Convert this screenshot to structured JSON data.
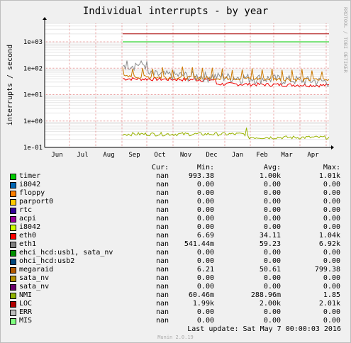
{
  "title": "Individual interrupts - by year",
  "side_label": "RRDTOOL / TOBI OETIKER",
  "chart_data": {
    "type": "line",
    "title": "Individual interrupts - by year",
    "ylabel": "interrupts / second",
    "yscale": "log",
    "ylim": [
      0.1,
      5000
    ],
    "yticks": [
      "1e-01",
      "1e+00",
      "1e+01",
      "1e+02",
      "1e+03"
    ],
    "x_months": [
      "Jun",
      "Jul",
      "Aug",
      "Sep",
      "Oct",
      "Nov",
      "Dec",
      "Jan",
      "Feb",
      "Mar",
      "Apr"
    ],
    "series": [
      {
        "name": "timer",
        "color": "#00cc00",
        "approx_level": 1000
      },
      {
        "name": "eth0",
        "color": "#ee0000",
        "approx_level": 34
      },
      {
        "name": "eth1",
        "color": "#8c8c8c",
        "approx_level": 59
      },
      {
        "name": "megaraid",
        "color": "#cc7a00",
        "approx_level": 50
      },
      {
        "name": "NMI",
        "color": "#99b300",
        "approx_level": 0.29
      },
      {
        "name": "LOC",
        "color": "#aa0000",
        "approx_level": 2000
      }
    ]
  },
  "legend": {
    "headers": {
      "cur": "Cur:",
      "min": "Min:",
      "avg": "Avg:",
      "max": "Max:"
    },
    "rows": [
      {
        "name": "timer",
        "color": "#00cc00",
        "cur": "nan",
        "min": "993.38",
        "avg": "1.00k",
        "max": "1.01k"
      },
      {
        "name": "i8042",
        "color": "#0066b3",
        "cur": "nan",
        "min": "0.00",
        "avg": "0.00",
        "max": "0.00"
      },
      {
        "name": "floppy",
        "color": "#ff8000",
        "cur": "nan",
        "min": "0.00",
        "avg": "0.00",
        "max": "0.00"
      },
      {
        "name": "parport0",
        "color": "#ffcc00",
        "cur": "nan",
        "min": "0.00",
        "avg": "0.00",
        "max": "0.00"
      },
      {
        "name": "rtc",
        "color": "#330099",
        "cur": "nan",
        "min": "0.00",
        "avg": "0.00",
        "max": "0.00"
      },
      {
        "name": "acpi",
        "color": "#990099",
        "cur": "nan",
        "min": "0.00",
        "avg": "0.00",
        "max": "0.00"
      },
      {
        "name": "i8042",
        "color": "#ccff00",
        "cur": "nan",
        "min": "0.00",
        "avg": "0.00",
        "max": "0.00"
      },
      {
        "name": "eth0",
        "color": "#ff0000",
        "cur": "nan",
        "min": "6.69",
        "avg": "34.11",
        "max": "1.04k"
      },
      {
        "name": "eth1",
        "color": "#808080",
        "cur": "nan",
        "min": "541.44m",
        "avg": "59.23",
        "max": "6.92k"
      },
      {
        "name": "ehci_hcd:usb1, sata_nv",
        "color": "#008f00",
        "cur": "nan",
        "min": "0.00",
        "avg": "0.00",
        "max": "0.00"
      },
      {
        "name": "ohci_hcd:usb2",
        "color": "#00487d",
        "cur": "nan",
        "min": "0.00",
        "avg": "0.00",
        "max": "0.00"
      },
      {
        "name": "megaraid",
        "color": "#b35a00",
        "cur": "nan",
        "min": "6.21",
        "avg": "50.61",
        "max": "799.38"
      },
      {
        "name": "sata_nv",
        "color": "#b38f00",
        "cur": "nan",
        "min": "0.00",
        "avg": "0.00",
        "max": "0.00"
      },
      {
        "name": "sata_nv",
        "color": "#6b006b",
        "cur": "nan",
        "min": "0.00",
        "avg": "0.00",
        "max": "0.00"
      },
      {
        "name": "NMI",
        "color": "#8fb300",
        "cur": "nan",
        "min": "60.46m",
        "avg": "288.96m",
        "max": "1.85"
      },
      {
        "name": "LOC",
        "color": "#b30000",
        "cur": "nan",
        "min": "1.99k",
        "avg": "2.00k",
        "max": "2.01k"
      },
      {
        "name": "ERR",
        "color": "#bebebe",
        "cur": "nan",
        "min": "0.00",
        "avg": "0.00",
        "max": "0.00"
      },
      {
        "name": "MIS",
        "color": "#80ff80",
        "cur": "nan",
        "min": "0.00",
        "avg": "0.00",
        "max": "0.00"
      }
    ]
  },
  "last_update": "Last update: Sat May  7 00:00:03 2016",
  "munin_version": "Munin 2.0.19"
}
